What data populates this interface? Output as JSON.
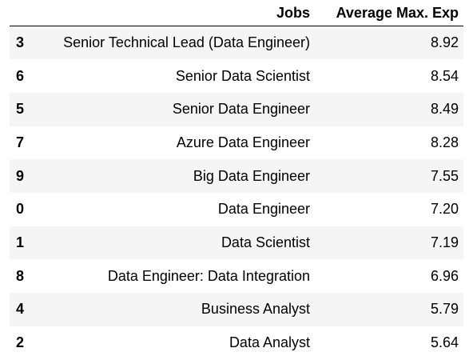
{
  "table": {
    "columns": {
      "index": "",
      "jobs": "Jobs",
      "avg_max_exp": "Average Max. Exp"
    },
    "rows": [
      {
        "index": "3",
        "jobs": "Senior Technical Lead (Data Engineer)",
        "avg_max_exp": "8.92"
      },
      {
        "index": "6",
        "jobs": "Senior Data Scientist",
        "avg_max_exp": "8.54"
      },
      {
        "index": "5",
        "jobs": "Senior Data Engineer",
        "avg_max_exp": "8.49"
      },
      {
        "index": "7",
        "jobs": "Azure Data Engineer",
        "avg_max_exp": "8.28"
      },
      {
        "index": "9",
        "jobs": "Big Data Engineer",
        "avg_max_exp": "7.55"
      },
      {
        "index": "0",
        "jobs": "Data Engineer",
        "avg_max_exp": "7.20"
      },
      {
        "index": "1",
        "jobs": "Data Scientist",
        "avg_max_exp": "7.19"
      },
      {
        "index": "8",
        "jobs": "Data Engineer: Data Integration",
        "avg_max_exp": "6.96"
      },
      {
        "index": "4",
        "jobs": "Business Analyst",
        "avg_max_exp": "5.79"
      },
      {
        "index": "2",
        "jobs": "Data Analyst",
        "avg_max_exp": "5.64"
      }
    ]
  }
}
